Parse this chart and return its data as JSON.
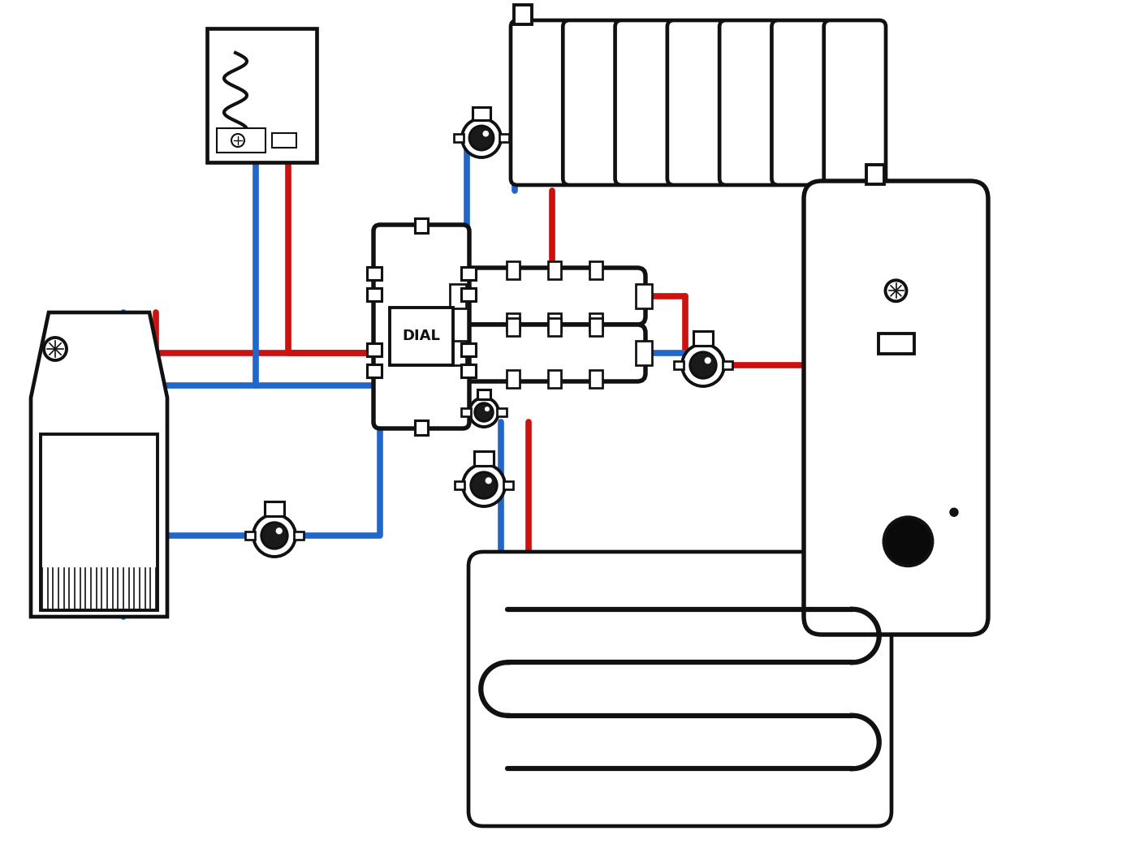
{
  "bg_color": "#ffffff",
  "line_red": "#cc1111",
  "line_blue": "#2266cc",
  "line_black": "#111111",
  "pipe_lw": 5.5,
  "comp_lw": 2.8,
  "fig_width": 13.93,
  "fig_height": 10.45,
  "dpi": 100
}
